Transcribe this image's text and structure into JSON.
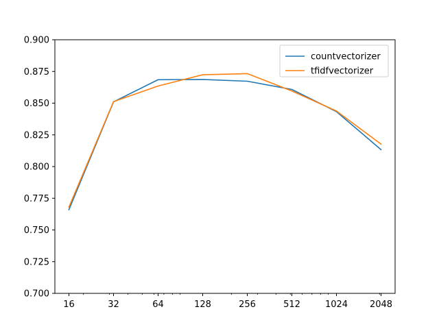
{
  "chart_data": {
    "type": "line",
    "title": "",
    "xlabel": "",
    "ylabel": "",
    "xscale": "log2",
    "x": [
      16,
      32,
      64,
      128,
      256,
      512,
      1024,
      2048
    ],
    "xticks": [
      "16",
      "32",
      "64",
      "128",
      "256",
      "512",
      "1024",
      "2048"
    ],
    "ylim": [
      0.7,
      0.9
    ],
    "yticks": [
      "0.700",
      "0.725",
      "0.750",
      "0.775",
      "0.800",
      "0.825",
      "0.850",
      "0.875",
      "0.900"
    ],
    "grid": false,
    "legend_position": "top-right",
    "series": [
      {
        "name": "countvectorizer",
        "color": "#1f77b4",
        "values": [
          0.766,
          0.851,
          0.8685,
          0.8687,
          0.8673,
          0.8608,
          0.8433,
          0.8133
        ]
      },
      {
        "name": "tfidfvectorizer",
        "color": "#ff7f0e",
        "values": [
          0.768,
          0.8512,
          0.8635,
          0.8724,
          0.8733,
          0.8596,
          0.8438,
          0.8177
        ]
      }
    ]
  }
}
